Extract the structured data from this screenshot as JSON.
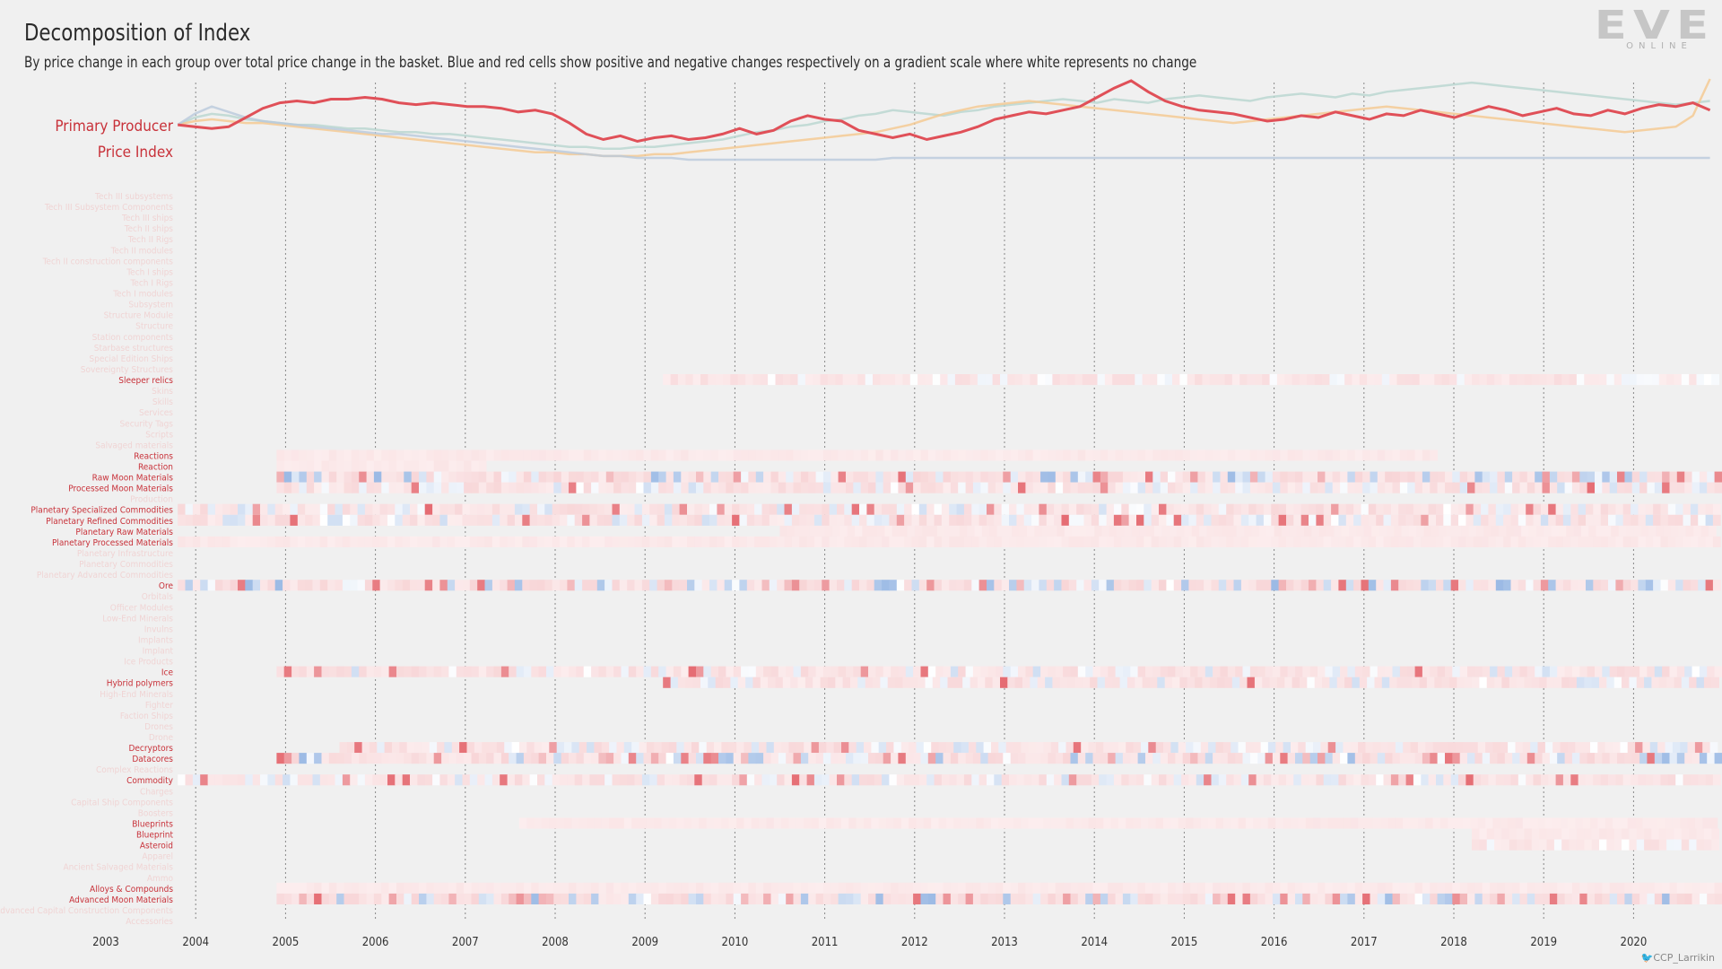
{
  "header": {
    "title": "Decomposition of Index",
    "subtitle": "By price change in each group over total price change in the basket. Blue and red cells show positive and negative changes respectively on a gradient scale where white represents no change"
  },
  "logo": {
    "text": "EVE",
    "subtext": "ONLINE"
  },
  "credit": "CCP_Larrikin",
  "colors": {
    "background": "#f0f0f0",
    "index_line": "#e05058",
    "positive": "#2f6fc8",
    "negative": "#e05058",
    "neutral": "#ffffff",
    "label_active": "#c8323a",
    "label_inactive": "#f0d4d4",
    "gridline": "#888888"
  },
  "chart_data": {
    "type": "heatmap",
    "title": "Decomposition of Index",
    "line_panel": {
      "label": [
        "Primary Producer",
        "Price Index"
      ],
      "x_range": [
        2003.8,
        2020.85
      ],
      "main_series": [
        1.0,
        0.99,
        0.98,
        0.99,
        1.04,
        1.09,
        1.12,
        1.13,
        1.12,
        1.14,
        1.14,
        1.15,
        1.14,
        1.12,
        1.11,
        1.12,
        1.11,
        1.1,
        1.1,
        1.09,
        1.07,
        1.08,
        1.06,
        1.01,
        0.95,
        0.92,
        0.94,
        0.91,
        0.93,
        0.94,
        0.92,
        0.93,
        0.95,
        0.98,
        0.95,
        0.97,
        1.02,
        1.05,
        1.03,
        1.02,
        0.97,
        0.95,
        0.93,
        0.95,
        0.92,
        0.94,
        0.96,
        0.99,
        1.03,
        1.05,
        1.07,
        1.06,
        1.08,
        1.1,
        1.15,
        1.2,
        1.24,
        1.18,
        1.13,
        1.1,
        1.08,
        1.07,
        1.06,
        1.04,
        1.02,
        1.03,
        1.05,
        1.04,
        1.07,
        1.05,
        1.03,
        1.06,
        1.05,
        1.08,
        1.06,
        1.04,
        1.07,
        1.1,
        1.08,
        1.05,
        1.07,
        1.09,
        1.06,
        1.05,
        1.08,
        1.06,
        1.09,
        1.11,
        1.1,
        1.12,
        1.08
      ],
      "background_series": [
        {
          "color": "#b8d6d0",
          "values": [
            1.0,
            1.04,
            1.06,
            1.05,
            1.03,
            1.02,
            1.01,
            1.0,
            1.0,
            0.99,
            0.98,
            0.98,
            0.97,
            0.96,
            0.96,
            0.95,
            0.95,
            0.94,
            0.93,
            0.92,
            0.91,
            0.9,
            0.89,
            0.88,
            0.88,
            0.87,
            0.87,
            0.88,
            0.88,
            0.89,
            0.9,
            0.91,
            0.92,
            0.94,
            0.96,
            0.97,
            0.99,
            1.0,
            1.02,
            1.03,
            1.05,
            1.06,
            1.08,
            1.07,
            1.06,
            1.05,
            1.07,
            1.08,
            1.1,
            1.11,
            1.12,
            1.13,
            1.14,
            1.13,
            1.12,
            1.14,
            1.13,
            1.12,
            1.14,
            1.15,
            1.16,
            1.15,
            1.14,
            1.13,
            1.15,
            1.16,
            1.17,
            1.16,
            1.15,
            1.17,
            1.16,
            1.18,
            1.19,
            1.2,
            1.21,
            1.22,
            1.23,
            1.22,
            1.21,
            1.2,
            1.19,
            1.18,
            1.17,
            1.16,
            1.15,
            1.14,
            1.13,
            1.12,
            1.11,
            1.12,
            1.13
          ]
        },
        {
          "color": "#f5c88e",
          "values": [
            1.0,
            1.02,
            1.03,
            1.02,
            1.01,
            1.01,
            1.0,
            0.99,
            0.98,
            0.97,
            0.96,
            0.95,
            0.94,
            0.93,
            0.92,
            0.91,
            0.9,
            0.89,
            0.88,
            0.87,
            0.86,
            0.85,
            0.85,
            0.84,
            0.84,
            0.83,
            0.83,
            0.83,
            0.84,
            0.84,
            0.85,
            0.86,
            0.87,
            0.88,
            0.89,
            0.9,
            0.91,
            0.92,
            0.93,
            0.94,
            0.95,
            0.96,
            0.98,
            1.0,
            1.03,
            1.06,
            1.08,
            1.1,
            1.11,
            1.12,
            1.13,
            1.12,
            1.11,
            1.1,
            1.09,
            1.08,
            1.07,
            1.06,
            1.05,
            1.04,
            1.03,
            1.02,
            1.01,
            1.02,
            1.03,
            1.04,
            1.05,
            1.06,
            1.07,
            1.08,
            1.09,
            1.1,
            1.09,
            1.08,
            1.07,
            1.06,
            1.05,
            1.04,
            1.03,
            1.02,
            1.01,
            1.0,
            0.99,
            0.98,
            0.97,
            0.96,
            0.97,
            0.98,
            0.99,
            1.05,
            1.25
          ]
        },
        {
          "color": "#b9c9dc",
          "values": [
            1.0,
            1.06,
            1.1,
            1.07,
            1.04,
            1.02,
            1.01,
            1.0,
            0.99,
            0.98,
            0.97,
            0.96,
            0.95,
            0.95,
            0.94,
            0.93,
            0.92,
            0.91,
            0.9,
            0.89,
            0.88,
            0.87,
            0.86,
            0.85,
            0.84,
            0.83,
            0.83,
            0.82,
            0.82,
            0.82,
            0.81,
            0.81,
            0.81,
            0.81,
            0.81,
            0.81,
            0.81,
            0.81,
            0.81,
            0.81,
            0.81,
            0.81,
            0.82,
            0.82,
            0.82,
            0.82,
            0.82,
            0.82,
            0.82,
            0.82,
            0.82,
            0.82,
            0.82,
            0.82,
            0.82,
            0.82,
            0.82,
            0.82,
            0.82,
            0.82,
            0.82,
            0.82,
            0.82,
            0.82,
            0.82,
            0.82,
            0.82,
            0.82,
            0.82,
            0.82,
            0.82,
            0.82,
            0.82,
            0.82,
            0.82,
            0.82,
            0.82,
            0.82,
            0.82,
            0.82,
            0.82,
            0.82,
            0.82,
            0.82,
            0.82,
            0.82,
            0.82,
            0.82,
            0.82,
            0.82,
            0.82
          ]
        }
      ]
    },
    "x_ticks": [
      "2003",
      "2004",
      "2005",
      "2006",
      "2007",
      "2008",
      "2009",
      "2010",
      "2011",
      "2012",
      "2013",
      "2014",
      "2015",
      "2016",
      "2017",
      "2018",
      "2019",
      "2020"
    ],
    "x_range": [
      2003,
      2020.9
    ],
    "rows": [
      {
        "name": "Tech III subsystems",
        "active": false
      },
      {
        "name": "Tech III Subsystem Components",
        "active": false
      },
      {
        "name": "Tech III ships",
        "active": false
      },
      {
        "name": "Tech II ships",
        "active": false
      },
      {
        "name": "Tech II Rigs",
        "active": false
      },
      {
        "name": "Tech II modules",
        "active": false
      },
      {
        "name": "Tech II construction components",
        "active": false
      },
      {
        "name": "Tech I ships",
        "active": false
      },
      {
        "name": "Tech I Rigs",
        "active": false
      },
      {
        "name": "Tech I modules",
        "active": false
      },
      {
        "name": "Subsystem",
        "active": false
      },
      {
        "name": "Structure Module",
        "active": false
      },
      {
        "name": "Structure",
        "active": false
      },
      {
        "name": "Station components",
        "active": false
      },
      {
        "name": "Starbase structures",
        "active": false
      },
      {
        "name": "Special Edition Ships",
        "active": false
      },
      {
        "name": "Sovereignty Structures",
        "active": false
      },
      {
        "name": "Sleeper relics",
        "active": true,
        "start": 2009.2,
        "end": 2020.9,
        "pattern": "light",
        "seed": 3
      },
      {
        "name": "Skins",
        "active": false
      },
      {
        "name": "Skills",
        "active": false
      },
      {
        "name": "Services",
        "active": false
      },
      {
        "name": "Security Tags",
        "active": false
      },
      {
        "name": "Scripts",
        "active": false
      },
      {
        "name": "Salvaged materials",
        "active": false
      },
      {
        "name": "Reactions",
        "active": true,
        "start": 2004.9,
        "end": 2017.8,
        "pattern": "flat",
        "seed": 5
      },
      {
        "name": "Reaction",
        "active": true,
        "start": 2004.9,
        "end": 2007.2,
        "pattern": "flat",
        "seed": 7
      },
      {
        "name": "Raw Moon Materials",
        "active": true,
        "start": 2004.9,
        "end": 2020.9,
        "pattern": "busy",
        "seed": 11
      },
      {
        "name": "Processed Moon Materials",
        "active": true,
        "start": 2004.9,
        "end": 2020.9,
        "pattern": "medium",
        "seed": 13
      },
      {
        "name": "Production",
        "active": false
      },
      {
        "name": "Planetary Specialized Commodities",
        "active": true,
        "start": 2003.8,
        "end": 2020.9,
        "pattern": "medium",
        "seed": 17
      },
      {
        "name": "Planetary Refined Commodities",
        "active": true,
        "start": 2003.8,
        "end": 2020.9,
        "pattern": "medium",
        "seed": 19
      },
      {
        "name": "Planetary Raw Materials",
        "active": true,
        "start": 2010.5,
        "end": 2020.9,
        "pattern": "flat",
        "seed": 23
      },
      {
        "name": "Planetary Processed Materials",
        "active": true,
        "start": 2003.8,
        "end": 2020.9,
        "pattern": "flat",
        "seed": 29
      },
      {
        "name": "Planetary Infrastructure",
        "active": false
      },
      {
        "name": "Planetary Commodities",
        "active": false
      },
      {
        "name": "Planetary Advanced Commodities",
        "active": false
      },
      {
        "name": "Ore",
        "active": true,
        "start": 2003.8,
        "end": 2020.9,
        "pattern": "busy",
        "seed": 31
      },
      {
        "name": "Orbitals",
        "active": false
      },
      {
        "name": "Officer Modules",
        "active": false
      },
      {
        "name": "Low-End Minerals",
        "active": false
      },
      {
        "name": "Invulns",
        "active": false
      },
      {
        "name": "Implants",
        "active": false
      },
      {
        "name": "Implant",
        "active": false
      },
      {
        "name": "Ice Products",
        "active": false
      },
      {
        "name": "Ice",
        "active": true,
        "start": 2004.9,
        "end": 2020.9,
        "pattern": "medium",
        "seed": 37
      },
      {
        "name": "Hybrid polymers",
        "active": true,
        "start": 2009.2,
        "end": 2020.9,
        "pattern": "medium",
        "seed": 41
      },
      {
        "name": "High-End Minerals",
        "active": false
      },
      {
        "name": "Fighter",
        "active": false
      },
      {
        "name": "Faction Ships",
        "active": false
      },
      {
        "name": "Drones",
        "active": false
      },
      {
        "name": "Drone",
        "active": false
      },
      {
        "name": "Decryptors",
        "active": true,
        "start": 2005.6,
        "end": 2020.9,
        "pattern": "medium",
        "seed": 43
      },
      {
        "name": "Datacores",
        "active": true,
        "start": 2004.9,
        "end": 2020.9,
        "pattern": "busy",
        "seed": 47
      },
      {
        "name": "Complex Reactions",
        "active": false
      },
      {
        "name": "Commodity",
        "active": true,
        "start": 2003.8,
        "end": 2020.9,
        "pattern": "medium",
        "seed": 53
      },
      {
        "name": "Charges",
        "active": false
      },
      {
        "name": "Capital Ship Components",
        "active": false
      },
      {
        "name": "Boosters",
        "active": false
      },
      {
        "name": "Blueprints",
        "active": true,
        "start": 2007.6,
        "end": 2020.9,
        "pattern": "flat",
        "seed": 59
      },
      {
        "name": "Blueprint",
        "active": true,
        "start": 2018.2,
        "end": 2020.9,
        "pattern": "flat",
        "seed": 61
      },
      {
        "name": "Asteroid",
        "active": true,
        "start": 2018.2,
        "end": 2020.9,
        "pattern": "light",
        "seed": 67
      },
      {
        "name": "Apparel",
        "active": false
      },
      {
        "name": "Ancient Salvaged Materials",
        "active": false
      },
      {
        "name": "Ammo",
        "active": false
      },
      {
        "name": "Alloys & Compounds",
        "active": true,
        "start": 2004.9,
        "end": 2020.9,
        "pattern": "flat",
        "seed": 71
      },
      {
        "name": "Advanced Moon Materials",
        "active": true,
        "start": 2004.9,
        "end": 2020.9,
        "pattern": "busy",
        "seed": 73
      },
      {
        "name": "Advanced Capital Construction Components",
        "active": false
      },
      {
        "name": "Accessories",
        "active": false
      }
    ]
  }
}
